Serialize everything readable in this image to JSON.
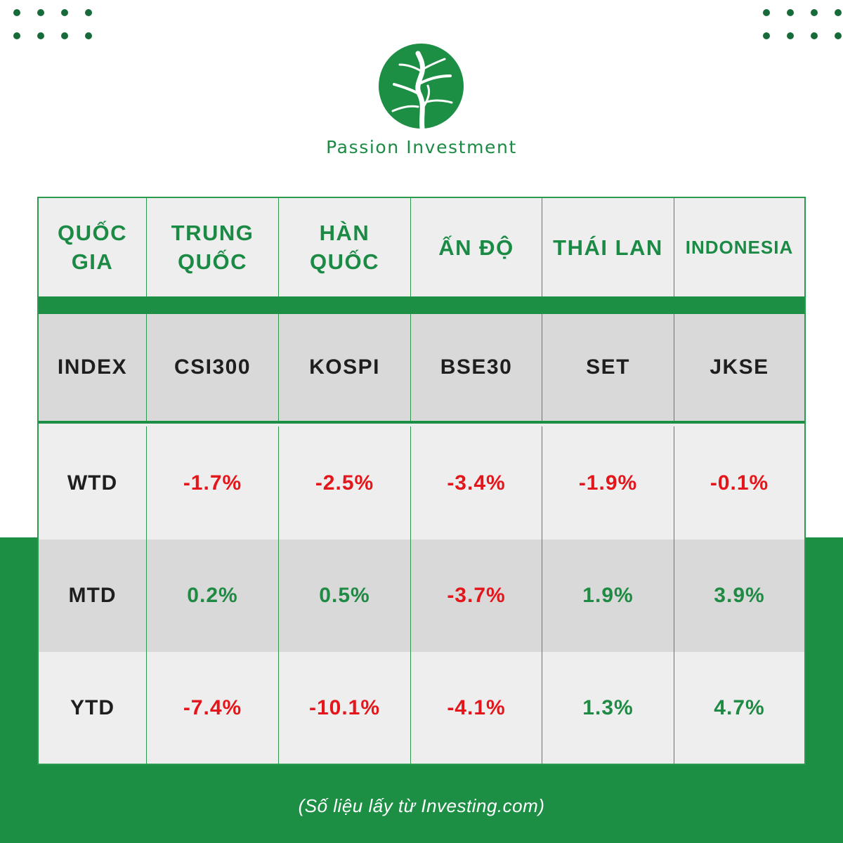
{
  "brand": {
    "name": "Passion Investment",
    "logo_icon": "tree-circle-logo",
    "colors": {
      "brand_green": "#1d8f45",
      "negative_red": "#e3161b",
      "positive_green": "#1f8a43"
    }
  },
  "table": {
    "header": {
      "label": "QUỐC GIA",
      "countries": [
        "TRUNG QUỐC",
        "HÀN QUỐC",
        "ẤN ĐỘ",
        "THÁI LAN",
        "INDONESIA"
      ]
    },
    "index_row": {
      "label": "INDEX",
      "values": [
        "CSI300",
        "KOSPI",
        "BSE30",
        "SET",
        "JKSE"
      ]
    },
    "rows": [
      {
        "label": "WTD",
        "values": [
          "-1.7%",
          "-2.5%",
          "-3.4%",
          "-1.9%",
          "-0.1%"
        ]
      },
      {
        "label": "MTD",
        "values": [
          "0.2%",
          "0.5%",
          "-3.7%",
          "1.9%",
          "3.9%"
        ]
      },
      {
        "label": "YTD",
        "values": [
          "-7.4%",
          "-10.1%",
          "-4.1%",
          "1.3%",
          "4.7%"
        ]
      }
    ]
  },
  "footer": {
    "source": "(Số liệu lấy từ Investing.com)"
  }
}
